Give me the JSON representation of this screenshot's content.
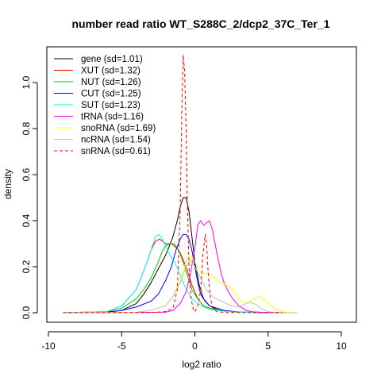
{
  "chart_data": {
    "type": "line",
    "title": "number read ratio WT_S288C_2/dcp2_37C_Ter_1",
    "xlabel": "log2 ratio",
    "ylabel": "density",
    "xlim": [
      -10,
      10.5
    ],
    "ylim": [
      0,
      1.15
    ],
    "xticks": [
      -10,
      -5,
      0,
      5,
      10
    ],
    "yticks": [
      0.0,
      0.2,
      0.4,
      0.6,
      0.8,
      1.0
    ],
    "xtick_labels": [
      "-10",
      "-5",
      "0",
      "5",
      "10"
    ],
    "ytick_labels": [
      "0.0",
      "0.2",
      "0.4",
      "0.6",
      "0.8",
      "1.0"
    ],
    "grid": false,
    "legend_position": "top-left",
    "series": [
      {
        "name": "gene (sd=1.01)",
        "color": "#000000",
        "dashed": false,
        "points": [
          [
            -9,
            0
          ],
          [
            -6,
            0.002
          ],
          [
            -5,
            0.01
          ],
          [
            -4,
            0.04
          ],
          [
            -3.5,
            0.08
          ],
          [
            -3,
            0.13
          ],
          [
            -2.5,
            0.19
          ],
          [
            -2,
            0.25
          ],
          [
            -1.8,
            0.28
          ],
          [
            -1.5,
            0.33
          ],
          [
            -1.2,
            0.4
          ],
          [
            -1,
            0.46
          ],
          [
            -0.8,
            0.5
          ],
          [
            -0.6,
            0.5
          ],
          [
            -0.4,
            0.44
          ],
          [
            -0.2,
            0.33
          ],
          [
            0,
            0.22
          ],
          [
            0.3,
            0.12
          ],
          [
            0.6,
            0.06
          ],
          [
            1,
            0.03
          ],
          [
            1.5,
            0.015
          ],
          [
            2,
            0.008
          ],
          [
            3,
            0.002
          ],
          [
            6,
            0
          ]
        ]
      },
      {
        "name": "XUT (sd=1.32)",
        "color": "#ff0000",
        "dashed": false,
        "points": [
          [
            -9,
            0
          ],
          [
            -6,
            0.005
          ],
          [
            -5,
            0.03
          ],
          [
            -4,
            0.1
          ],
          [
            -3.5,
            0.18
          ],
          [
            -3,
            0.27
          ],
          [
            -2.7,
            0.31
          ],
          [
            -2.4,
            0.32
          ],
          [
            -2,
            0.3
          ],
          [
            -1.6,
            0.3
          ],
          [
            -1.2,
            0.28
          ],
          [
            -1,
            0.26
          ],
          [
            -0.6,
            0.2
          ],
          [
            -0.2,
            0.12
          ],
          [
            0.2,
            0.06
          ],
          [
            0.6,
            0.03
          ],
          [
            1,
            0.02
          ],
          [
            2,
            0.008
          ],
          [
            3,
            0.002
          ],
          [
            6,
            0
          ]
        ]
      },
      {
        "name": "NUT (sd=1.26)",
        "color": "#00cc00",
        "dashed": false,
        "points": [
          [
            -9,
            0
          ],
          [
            -6,
            0.005
          ],
          [
            -5,
            0.02
          ],
          [
            -4,
            0.06
          ],
          [
            -3.5,
            0.1
          ],
          [
            -3,
            0.15
          ],
          [
            -2.5,
            0.22
          ],
          [
            -2.2,
            0.27
          ],
          [
            -2,
            0.29
          ],
          [
            -1.7,
            0.3
          ],
          [
            -1.4,
            0.3
          ],
          [
            -1.1,
            0.27
          ],
          [
            -0.8,
            0.22
          ],
          [
            -0.5,
            0.16
          ],
          [
            -0.2,
            0.1
          ],
          [
            0.2,
            0.06
          ],
          [
            0.6,
            0.03
          ],
          [
            1,
            0.02
          ],
          [
            2,
            0.008
          ],
          [
            3,
            0.002
          ],
          [
            6,
            0
          ]
        ]
      },
      {
        "name": "CUT (sd=1.25)",
        "color": "#0000ff",
        "dashed": false,
        "points": [
          [
            -9,
            0
          ],
          [
            -6,
            0.003
          ],
          [
            -5,
            0.01
          ],
          [
            -4,
            0.025
          ],
          [
            -3,
            0.05
          ],
          [
            -2.5,
            0.08
          ],
          [
            -2,
            0.14
          ],
          [
            -1.6,
            0.2
          ],
          [
            -1.3,
            0.27
          ],
          [
            -1,
            0.32
          ],
          [
            -0.8,
            0.34
          ],
          [
            -0.6,
            0.34
          ],
          [
            -0.4,
            0.32
          ],
          [
            -0.2,
            0.27
          ],
          [
            0,
            0.2
          ],
          [
            0.2,
            0.13
          ],
          [
            0.4,
            0.08
          ],
          [
            0.7,
            0.05
          ],
          [
            1,
            0.03
          ],
          [
            1.5,
            0.02
          ],
          [
            2,
            0.01
          ],
          [
            3,
            0.003
          ],
          [
            6,
            0
          ]
        ]
      },
      {
        "name": "SUT (sd=1.23)",
        "color": "#00ffff",
        "dashed": false,
        "points": [
          [
            -9,
            0
          ],
          [
            -6,
            0.005
          ],
          [
            -5,
            0.03
          ],
          [
            -4,
            0.1
          ],
          [
            -3.5,
            0.18
          ],
          [
            -3,
            0.27
          ],
          [
            -2.7,
            0.33
          ],
          [
            -2.5,
            0.34
          ],
          [
            -2.3,
            0.33
          ],
          [
            -2,
            0.29
          ],
          [
            -1.7,
            0.25
          ],
          [
            -1.4,
            0.22
          ],
          [
            -1.1,
            0.18
          ],
          [
            -0.8,
            0.13
          ],
          [
            -0.5,
            0.09
          ],
          [
            -0.2,
            0.06
          ],
          [
            0.2,
            0.04
          ],
          [
            0.6,
            0.025
          ],
          [
            1,
            0.015
          ],
          [
            2,
            0.006
          ],
          [
            3,
            0.002
          ],
          [
            6,
            0
          ]
        ]
      },
      {
        "name": "tRNA (sd=1.16)",
        "color": "#ff00ff",
        "dashed": false,
        "points": [
          [
            -9,
            0
          ],
          [
            -2,
            0.002
          ],
          [
            -1.5,
            0.01
          ],
          [
            -1,
            0.04
          ],
          [
            -0.6,
            0.09
          ],
          [
            -0.3,
            0.17
          ],
          [
            0,
            0.28
          ],
          [
            0.2,
            0.38
          ],
          [
            0.4,
            0.4
          ],
          [
            0.6,
            0.38
          ],
          [
            0.8,
            0.39
          ],
          [
            1,
            0.4
          ],
          [
            1.2,
            0.36
          ],
          [
            1.5,
            0.26
          ],
          [
            1.8,
            0.17
          ],
          [
            2,
            0.13
          ],
          [
            2.3,
            0.09
          ],
          [
            2.6,
            0.06
          ],
          [
            3,
            0.03
          ],
          [
            3.5,
            0.01
          ],
          [
            4,
            0.004
          ],
          [
            5,
            0.001
          ],
          [
            6,
            0
          ]
        ]
      },
      {
        "name": "snoRNA (sd=1.69)",
        "color": "#ffff00",
        "dashed": false,
        "points": [
          [
            -9,
            0
          ],
          [
            -4,
            0.002
          ],
          [
            -3,
            0.01
          ],
          [
            -2,
            0.03
          ],
          [
            -1.5,
            0.07
          ],
          [
            -1,
            0.14
          ],
          [
            -0.6,
            0.22
          ],
          [
            -0.3,
            0.25
          ],
          [
            0,
            0.22
          ],
          [
            0.3,
            0.18
          ],
          [
            0.7,
            0.17
          ],
          [
            1,
            0.17
          ],
          [
            1.4,
            0.15
          ],
          [
            1.8,
            0.13
          ],
          [
            2.2,
            0.12
          ],
          [
            2.6,
            0.1
          ],
          [
            3,
            0.06
          ],
          [
            3.5,
            0.04
          ],
          [
            4,
            0.06
          ],
          [
            4.4,
            0.07
          ],
          [
            4.8,
            0.055
          ],
          [
            5.2,
            0.03
          ],
          [
            5.7,
            0.01
          ],
          [
            6.2,
            0.002
          ],
          [
            7,
            0
          ]
        ]
      },
      {
        "name": "ncRNA (sd=1.54)",
        "color": "#bebebe",
        "dashed": false,
        "points": [
          [
            -9,
            0
          ],
          [
            -4,
            0.002
          ],
          [
            -3,
            0.01
          ],
          [
            -2,
            0.03
          ],
          [
            -1.5,
            0.07
          ],
          [
            -1,
            0.13
          ],
          [
            -0.6,
            0.2
          ],
          [
            -0.3,
            0.23
          ],
          [
            0,
            0.2
          ],
          [
            0.4,
            0.15
          ],
          [
            0.8,
            0.1
          ],
          [
            1.2,
            0.07
          ],
          [
            1.8,
            0.05
          ],
          [
            2.5,
            0.03
          ],
          [
            3,
            0.025
          ],
          [
            3.5,
            0.04
          ],
          [
            3.8,
            0.045
          ],
          [
            4.2,
            0.035
          ],
          [
            4.6,
            0.015
          ],
          [
            5,
            0.005
          ],
          [
            5.5,
            0
          ],
          [
            7,
            0
          ]
        ]
      },
      {
        "name": "snRNA (sd=0.61)",
        "color": "#ff0000",
        "dashed": true,
        "points": [
          [
            -9,
            0
          ],
          [
            -3,
            0.001
          ],
          [
            -2,
            0.005
          ],
          [
            -1.5,
            0.02
          ],
          [
            -1.2,
            0.1
          ],
          [
            -1,
            0.45
          ],
          [
            -0.9,
            0.85
          ],
          [
            -0.8,
            1.12
          ],
          [
            -0.7,
            1.05
          ],
          [
            -0.6,
            0.8
          ],
          [
            -0.5,
            0.45
          ],
          [
            -0.4,
            0.2
          ],
          [
            -0.25,
            0.06
          ],
          [
            -0.1,
            0.01
          ],
          [
            0,
            0.005
          ],
          [
            0.2,
            0.03
          ],
          [
            0.4,
            0.1
          ],
          [
            0.55,
            0.25
          ],
          [
            0.7,
            0.34
          ],
          [
            0.8,
            0.3
          ],
          [
            0.9,
            0.18
          ],
          [
            1.05,
            0.07
          ],
          [
            1.2,
            0.02
          ],
          [
            1.5,
            0.005
          ],
          [
            2,
            0.001
          ],
          [
            6,
            0
          ]
        ]
      }
    ]
  }
}
